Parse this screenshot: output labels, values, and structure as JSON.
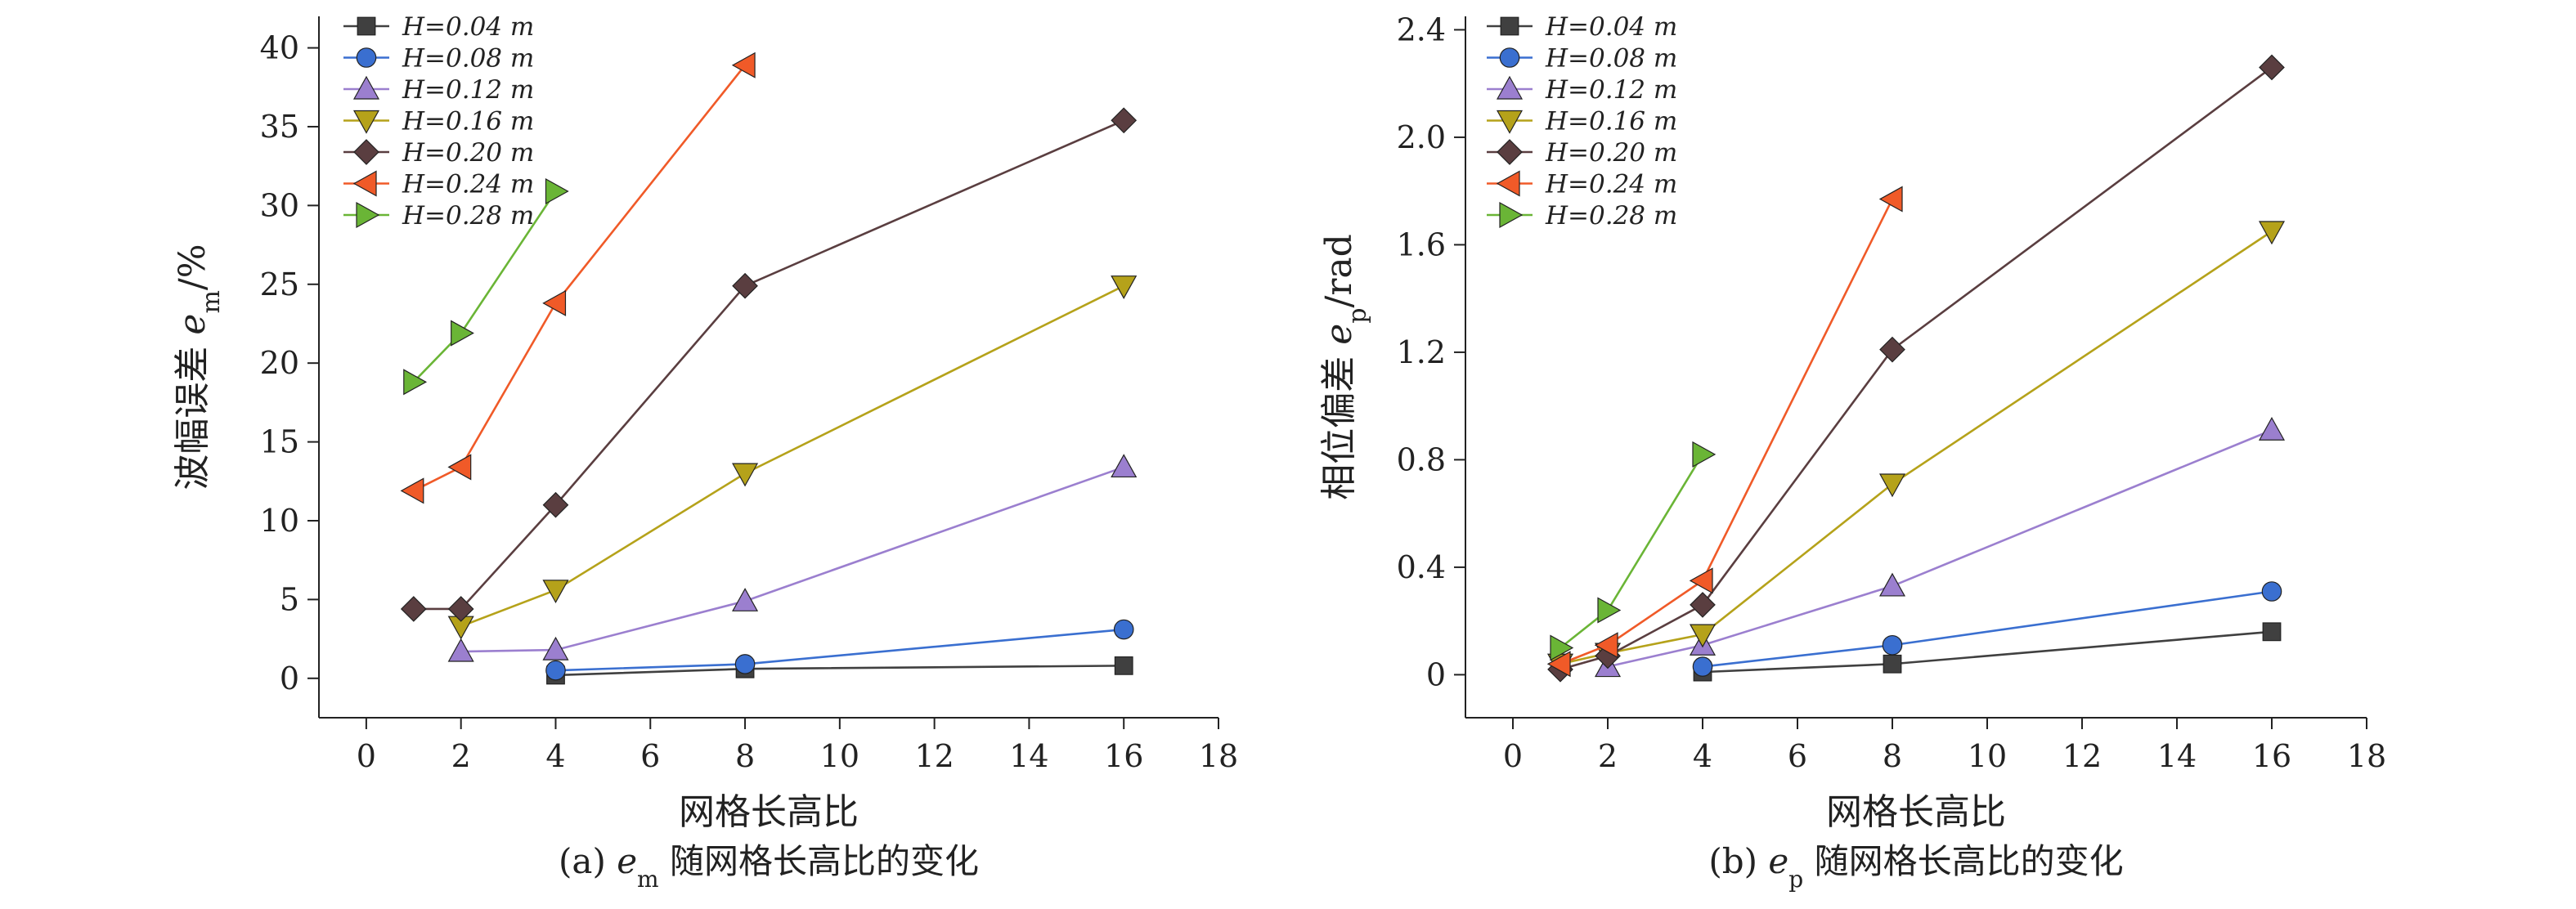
{
  "chart_data": [
    {
      "type": "line",
      "ylabel_main": "波幅误差 ",
      "ylabel_var": "e",
      "ylabel_sub": "m",
      "ylabel_unit": "/%",
      "xlabel": "网格长高比",
      "caption_prefix": "(a) ",
      "caption_var": "e",
      "caption_sub": "m",
      "caption_suffix": " 随网格长高比的变化",
      "xlim": [
        -1,
        18
      ],
      "ylim": [
        -2.5,
        42
      ],
      "xticks": [
        0,
        2,
        4,
        6,
        8,
        10,
        12,
        14,
        16,
        18
      ],
      "yticks": [
        0,
        5,
        10,
        15,
        20,
        25,
        30,
        35,
        40
      ],
      "ytick_labels": [
        "0",
        "5",
        "10",
        "15",
        "20",
        "25",
        "30",
        "35",
        "40"
      ],
      "legend_position": "top-left",
      "series": [
        {
          "name": "H=0.04 m",
          "color": "#404040",
          "marker": "square",
          "x": [
            4,
            8,
            16
          ],
          "y": [
            0.2,
            0.6,
            0.8
          ]
        },
        {
          "name": "H=0.08 m",
          "color": "#3a6fd0",
          "marker": "circle",
          "x": [
            4,
            8,
            16
          ],
          "y": [
            0.5,
            0.9,
            3.1
          ]
        },
        {
          "name": "H=0.12 m",
          "color": "#9b7fcf",
          "marker": "triangle-up",
          "x": [
            2,
            4,
            8,
            16
          ],
          "y": [
            1.7,
            1.8,
            4.9,
            13.4
          ]
        },
        {
          "name": "H=0.16 m",
          "color": "#b5a21a",
          "marker": "triangle-down",
          "x": [
            2,
            4,
            8,
            16
          ],
          "y": [
            3.3,
            5.6,
            13.0,
            24.9
          ]
        },
        {
          "name": "H=0.20 m",
          "color": "#5a3e40",
          "marker": "diamond",
          "x": [
            1,
            2,
            4,
            8,
            16
          ],
          "y": [
            4.4,
            4.4,
            11.0,
            24.9,
            35.4
          ]
        },
        {
          "name": "H=0.24 m",
          "color": "#f05a28",
          "marker": "triangle-left",
          "x": [
            1,
            2,
            4,
            8
          ],
          "y": [
            11.9,
            13.4,
            23.8,
            38.9
          ]
        },
        {
          "name": "H=0.28 m",
          "color": "#6ab536",
          "marker": "triangle-right",
          "x": [
            1,
            2,
            4
          ],
          "y": [
            18.8,
            21.9,
            30.9
          ]
        }
      ]
    },
    {
      "type": "line",
      "ylabel_main": "相位偏差 ",
      "ylabel_var": "e",
      "ylabel_sub": "p",
      "ylabel_unit": "/rad",
      "xlabel": "网格长高比",
      "caption_prefix": "(b) ",
      "caption_var": "e",
      "caption_sub": "p",
      "caption_suffix": " 随网格长高比的变化",
      "xlim": [
        -1,
        18
      ],
      "ylim": [
        -0.16,
        2.45
      ],
      "xticks": [
        0,
        2,
        4,
        6,
        8,
        10,
        12,
        14,
        16,
        18
      ],
      "yticks": [
        0,
        0.4,
        0.8,
        1.2,
        1.6,
        2.0,
        2.4
      ],
      "ytick_labels": [
        "0",
        "0.4",
        "0.8",
        "1.2",
        "1.6",
        "2.0",
        "2.4"
      ],
      "legend_position": "top-left",
      "series": [
        {
          "name": "H=0.04 m",
          "color": "#404040",
          "marker": "square",
          "x": [
            4,
            8,
            16
          ],
          "y": [
            0.01,
            0.04,
            0.16
          ]
        },
        {
          "name": "H=0.08 m",
          "color": "#3a6fd0",
          "marker": "circle",
          "x": [
            4,
            8,
            16
          ],
          "y": [
            0.03,
            0.11,
            0.31
          ]
        },
        {
          "name": "H=0.12 m",
          "color": "#9b7fcf",
          "marker": "triangle-up",
          "x": [
            2,
            4,
            8,
            16
          ],
          "y": [
            0.03,
            0.11,
            0.33,
            0.91
          ]
        },
        {
          "name": "H=0.16 m",
          "color": "#b5a21a",
          "marker": "triangle-down",
          "x": [
            1,
            2,
            4,
            8,
            16
          ],
          "y": [
            0.04,
            0.08,
            0.15,
            0.71,
            1.65
          ]
        },
        {
          "name": "H=0.20 m",
          "color": "#5a3e40",
          "marker": "diamond",
          "x": [
            1,
            2,
            4,
            8,
            16
          ],
          "y": [
            0.02,
            0.07,
            0.26,
            1.21,
            2.26
          ]
        },
        {
          "name": "H=0.24 m",
          "color": "#f05a28",
          "marker": "triangle-left",
          "x": [
            1,
            2,
            4,
            8
          ],
          "y": [
            0.04,
            0.11,
            0.35,
            1.77
          ]
        },
        {
          "name": "H=0.28 m",
          "color": "#6ab536",
          "marker": "triangle-right",
          "x": [
            1,
            2,
            4
          ],
          "y": [
            0.1,
            0.24,
            0.82
          ]
        }
      ]
    }
  ]
}
